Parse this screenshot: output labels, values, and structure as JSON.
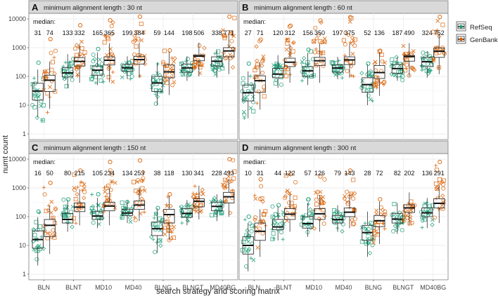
{
  "chart_data": {
    "type": "boxplot",
    "title": "",
    "xlabel": "search strategy and scoring matrix",
    "ylabel": "numt count",
    "yscale": "log10",
    "ylim": [
      1,
      10000
    ],
    "y_ticks": [
      "1",
      "10",
      "100",
      "1000",
      "10000"
    ],
    "categories": [
      "BLN",
      "BLNT",
      "MD10",
      "MD40",
      "BLNG",
      "BLNGT",
      "MD40BG"
    ],
    "median_label": "median:",
    "legend": {
      "position": "right",
      "items": [
        {
          "name": "RefSeq",
          "color": "#1b9e77"
        },
        {
          "name": "GenBank",
          "color": "#d95f02"
        }
      ]
    },
    "panels": [
      {
        "letter": "A",
        "strip": "minimum alignment length : 30 nt",
        "series": [
          {
            "name": "RefSeq",
            "medians": [
              31,
              133,
              165,
              199,
              59,
              198,
              338
            ],
            "boxes": [
              [
                15,
                31,
                58,
                2,
                300
              ],
              [
                95,
                133,
                200,
                40,
                600
              ],
              [
                110,
                165,
                230,
                50,
                900
              ],
              [
                150,
                199,
                260,
                80,
                500
              ],
              [
                30,
                59,
                100,
                10,
                300
              ],
              [
                140,
                198,
                270,
                70,
                500
              ],
              [
                230,
                338,
                480,
                90,
                800
              ]
            ]
          },
          {
            "name": "GenBank",
            "medians": [
              74,
              332,
              365,
              384,
              144,
              506,
              771
            ],
            "boxes": [
              [
                30,
                74,
                110,
                5,
                2000
              ],
              [
                230,
                332,
                450,
                60,
                6000
              ],
              [
                250,
                365,
                480,
                60,
                9000
              ],
              [
                270,
                384,
                500,
                90,
                12000
              ],
              [
                90,
                144,
                250,
                20,
                800
              ],
              [
                350,
                506,
                560,
                100,
                1500
              ],
              [
                480,
                771,
                1000,
                120,
                12000
              ]
            ]
          }
        ]
      },
      {
        "letter": "B",
        "strip": "minimum alignment length : 60 nt",
        "series": [
          {
            "name": "RefSeq",
            "medians": [
              27,
              120,
              156,
              197,
              52,
              187,
              324
            ],
            "boxes": [
              [
                14,
                27,
                50,
                2,
                280
              ],
              [
                90,
                120,
                190,
                40,
                550
              ],
              [
                100,
                156,
                220,
                50,
                850
              ],
              [
                140,
                197,
                250,
                80,
                480
              ],
              [
                28,
                52,
                90,
                10,
                280
              ],
              [
                130,
                187,
                260,
                70,
                480
              ],
              [
                220,
                324,
                460,
                90,
                760
              ]
            ]
          },
          {
            "name": "GenBank",
            "medians": [
              71,
              312,
              350,
              375,
              136,
              490,
              752
            ],
            "boxes": [
              [
                28,
                71,
                105,
                5,
                1900
              ],
              [
                220,
                312,
                430,
                60,
                5800
              ],
              [
                240,
                350,
                460,
                60,
                8800
              ],
              [
                260,
                375,
                480,
                90,
                11500
              ],
              [
                85,
                136,
                240,
                20,
                780
              ],
              [
                340,
                490,
                540,
                100,
                1450
              ],
              [
                460,
                752,
                980,
                120,
                11800
              ]
            ]
          }
        ]
      },
      {
        "letter": "C",
        "strip": "minimum alignment length : 150 nt",
        "series": [
          {
            "name": "RefSeq",
            "medians": [
              16,
              80,
              105,
              134,
              38,
              130,
              228
            ],
            "boxes": [
              [
                8,
                16,
                32,
                2,
                150
              ],
              [
                60,
                80,
                130,
                30,
                400
              ],
              [
                80,
                105,
                150,
                40,
                600
              ],
              [
                110,
                134,
                180,
                60,
                350
              ],
              [
                22,
                38,
                65,
                5,
                200
              ],
              [
                95,
                130,
                190,
                50,
                380
              ],
              [
                160,
                228,
                320,
                70,
                600
              ]
            ]
          },
          {
            "name": "GenBank",
            "medians": [
              50,
              215,
              234,
              253,
              118,
              341,
              493
            ],
            "boxes": [
              [
                20,
                50,
                80,
                5,
                1500
              ],
              [
                150,
                215,
                300,
                50,
                4000
              ],
              [
                160,
                234,
                320,
                50,
                8000
              ],
              [
                180,
                253,
                350,
                70,
                9000
              ],
              [
                60,
                118,
                180,
                15,
                600
              ],
              [
                220,
                341,
                420,
                80,
                1200
              ],
              [
                300,
                493,
                700,
                100,
                10000
              ]
            ]
          }
        ]
      },
      {
        "letter": "D",
        "strip": "minimum alignment length : 300 nt",
        "series": [
          {
            "name": "RefSeq",
            "medians": [
              10,
              44,
              57,
              79,
              28,
              82,
              136
            ],
            "boxes": [
              [
                5,
                10,
                20,
                1,
                100
              ],
              [
                35,
                44,
                80,
                15,
                250
              ],
              [
                40,
                57,
                100,
                20,
                400
              ],
              [
                60,
                79,
                110,
                30,
                250
              ],
              [
                15,
                28,
                50,
                4,
                150
              ],
              [
                60,
                82,
                130,
                25,
                300
              ],
              [
                100,
                136,
                200,
                40,
                450
              ]
            ]
          },
          {
            "name": "GenBank",
            "medians": [
              31,
              122,
              126,
              143,
              72,
              202,
              291
            ],
            "boxes": [
              [
                15,
                31,
                60,
                4,
                2000
              ],
              [
                80,
                122,
                190,
                30,
                3000
              ],
              [
                80,
                126,
                190,
                30,
                2500
              ],
              [
                100,
                143,
                200,
                40,
                4000
              ],
              [
                45,
                72,
                110,
                10,
                400
              ],
              [
                140,
                202,
                260,
                50,
                700
              ],
              [
                200,
                291,
                420,
                60,
                8000
              ]
            ]
          }
        ]
      }
    ]
  }
}
